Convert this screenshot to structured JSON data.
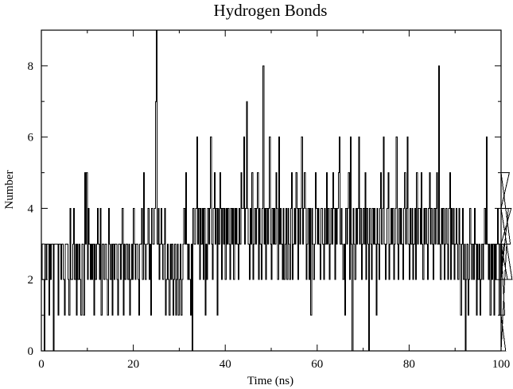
{
  "chart_data": {
    "type": "line",
    "title": "Hydrogen Bonds",
    "xlabel": "Time (ns)",
    "ylabel": "Number",
    "xlim": [
      0,
      100
    ],
    "ylim": [
      0,
      9
    ],
    "x_ticks": [
      0,
      20,
      40,
      60,
      80,
      100
    ],
    "y_ticks": [
      0,
      2,
      4,
      6,
      8
    ],
    "grid": false,
    "line_color": "#000000",
    "series": [
      {
        "name": "",
        "x_step": 0.2,
        "x_start": 0,
        "values": [
          3,
          2,
          2,
          0,
          3,
          2,
          3,
          3,
          1,
          3,
          2,
          3,
          3,
          0,
          3,
          3,
          3,
          3,
          1,
          3,
          3,
          2,
          3,
          3,
          2,
          1,
          3,
          3,
          3,
          2,
          1,
          4,
          2,
          2,
          3,
          4,
          2,
          3,
          1,
          3,
          2,
          3,
          2,
          1,
          3,
          3,
          1,
          5,
          3,
          5,
          2,
          4,
          3,
          2,
          3,
          2,
          3,
          1,
          3,
          2,
          3,
          4,
          3,
          2,
          4,
          1,
          3,
          3,
          2,
          3,
          3,
          2,
          1,
          4,
          3,
          2,
          3,
          1,
          3,
          2,
          3,
          3,
          2,
          1,
          3,
          3,
          2,
          3,
          4,
          1,
          3,
          2,
          3,
          3,
          2,
          3,
          1,
          2,
          3,
          2,
          4,
          3,
          2,
          3,
          3,
          2,
          1,
          3,
          3,
          4,
          2,
          5,
          3,
          2,
          3,
          3,
          4,
          2,
          3,
          1,
          4,
          3,
          3,
          4,
          7,
          9,
          3,
          4,
          2,
          3,
          4,
          3,
          2,
          3,
          4,
          1,
          2,
          3,
          2,
          1,
          3,
          2,
          3,
          1,
          2,
          3,
          1,
          2,
          3,
          1,
          2,
          3,
          1,
          2,
          3,
          4,
          3,
          5,
          3,
          2,
          3,
          2,
          1,
          3,
          0,
          4,
          3,
          3,
          4,
          6,
          3,
          4,
          2,
          4,
          3,
          4,
          2,
          4,
          1,
          3,
          2,
          4,
          3,
          4,
          6,
          3,
          2,
          4,
          5,
          3,
          4,
          1,
          4,
          3,
          5,
          4,
          2,
          4,
          3,
          4,
          2,
          4,
          3,
          4,
          3,
          2,
          4,
          3,
          4,
          2,
          4,
          3,
          4,
          3,
          2,
          4,
          3,
          5,
          4,
          4,
          6,
          3,
          4,
          7,
          4,
          3,
          2,
          4,
          3,
          5,
          2,
          3,
          4,
          3,
          4,
          5,
          2,
          4,
          3,
          2,
          4,
          8,
          3,
          4,
          2,
          4,
          3,
          4,
          6,
          3,
          2,
          4,
          3,
          4,
          3,
          5,
          4,
          2,
          6,
          3,
          4,
          3,
          2,
          4,
          2,
          3,
          4,
          2,
          4,
          3,
          2,
          4,
          5,
          2,
          3,
          4,
          3,
          5,
          4,
          2,
          4,
          3,
          4,
          6,
          3,
          4,
          5,
          4,
          2,
          3,
          4,
          2,
          4,
          1,
          4,
          3,
          2,
          3,
          5,
          4,
          3,
          4,
          3,
          2,
          4,
          4,
          3,
          2,
          4,
          3,
          5,
          3,
          4,
          2,
          3,
          4,
          3,
          5,
          4,
          2,
          4,
          3,
          4,
          5,
          6,
          3,
          4,
          3,
          2,
          3,
          1,
          4,
          3,
          4,
          5,
          2,
          6,
          3,
          0,
          4,
          3,
          2,
          4,
          3,
          4,
          6,
          3,
          4,
          2,
          3,
          4,
          3,
          5,
          2,
          4,
          3,
          0,
          4,
          3,
          2,
          4,
          3,
          4,
          3,
          1,
          4,
          3,
          2,
          4,
          5,
          3,
          4,
          6,
          3,
          2,
          3,
          4,
          5,
          2,
          3,
          4,
          3,
          4,
          2,
          3,
          4,
          6,
          3,
          2,
          4,
          3,
          4,
          3,
          2,
          4,
          5,
          3,
          4,
          6,
          3,
          2,
          4,
          3,
          4,
          2,
          3,
          4,
          2,
          5,
          3,
          4,
          4,
          3,
          5,
          3,
          2,
          4,
          3,
          4,
          3,
          2,
          4,
          5,
          3,
          4,
          3,
          2,
          4,
          3,
          4,
          5,
          3,
          8,
          3,
          2,
          4,
          3,
          4,
          2,
          3,
          4,
          3,
          2,
          4,
          5,
          2,
          4,
          3,
          4,
          2,
          3,
          4,
          3,
          2,
          4,
          3,
          1,
          3,
          4,
          2,
          3,
          0,
          2,
          3,
          1,
          2,
          4,
          3,
          2,
          3,
          2,
          4,
          3,
          1,
          3,
          2,
          3,
          1,
          2,
          3,
          2,
          3,
          4,
          3,
          6,
          3,
          2,
          3,
          1,
          3,
          2,
          3,
          1,
          3,
          2,
          3,
          4,
          3,
          1,
          3,
          2,
          3,
          2,
          3,
          1,
          0,
          3,
          2,
          4,
          5,
          3,
          4,
          2
        ]
      }
    ]
  }
}
